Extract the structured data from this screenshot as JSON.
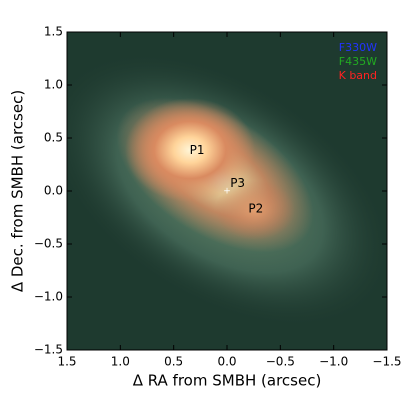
{
  "chart_data": {
    "type": "image",
    "xlabel": "Δ RA from SMBH (arcsec)",
    "ylabel": "Δ Dec. from SMBH (arcsec)",
    "xlim": [
      1.5,
      -1.5
    ],
    "ylim": [
      -1.5,
      1.5
    ],
    "xticks": [
      1.5,
      {
        "value": 1.0,
        "label": "1.0"
      },
      0.5,
      {
        "value": 0.0,
        "label": "0.0"
      },
      {
        "value": -0.5,
        "label": "−0.5"
      },
      {
        "value": -1.0,
        "label": "−1.0"
      },
      {
        "value": -1.5,
        "label": "−1.5"
      }
    ],
    "yticks": [
      {
        "value": -1.5,
        "label": "−1.5"
      },
      {
        "value": -1.0,
        "label": "−1.0"
      },
      {
        "value": -0.5,
        "label": "−0.5"
      },
      {
        "value": 0.0,
        "label": "0.0"
      },
      0.5,
      {
        "value": 1.0,
        "label": "1.0"
      },
      1.5
    ],
    "channels": [
      {
        "name": "F330W",
        "color": "#2233ff"
      },
      {
        "name": "F435W",
        "color": "#22aa22"
      },
      {
        "name": "K band",
        "color": "#ff2222"
      }
    ],
    "legend": "upper right",
    "annotations": [
      {
        "text": "P1",
        "x": 0.35,
        "y": 0.38
      },
      {
        "text": "P2",
        "x": -0.2,
        "y": -0.17
      },
      {
        "text": "P3",
        "x": -0.03,
        "y": 0.07
      }
    ],
    "marker": {
      "text": "+",
      "x": 0.0,
      "y": 0.0
    }
  }
}
